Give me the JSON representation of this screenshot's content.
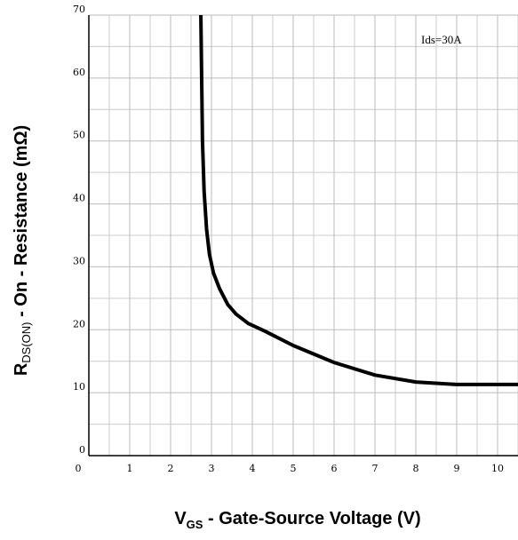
{
  "chart_data": {
    "type": "line",
    "x_label": {
      "main": "V",
      "sub": "GS",
      "rest": " - Gate-Source Voltage (V)"
    },
    "y_label": {
      "main": "R",
      "sub": "DS(ON)",
      "rest": " - On - Resistance (mΩ)"
    },
    "annotation": "Ids=30A",
    "x": [
      2.74,
      2.76,
      2.78,
      2.82,
      2.88,
      2.95,
      3.05,
      3.2,
      3.4,
      3.6,
      3.9,
      4.3,
      5,
      6,
      7,
      8,
      9,
      10,
      10.5
    ],
    "series": [
      {
        "name": "Ids=30A",
        "color": "#000000",
        "values": [
          70,
          60,
          50,
          42,
          36,
          32,
          29,
          26.5,
          24,
          22.5,
          21,
          19.8,
          17.5,
          14.8,
          12.8,
          11.7,
          11.3,
          11.3,
          11.3
        ]
      }
    ],
    "xlim": [
      0,
      10.5
    ],
    "xticks": [
      0,
      1,
      2,
      3,
      4,
      5,
      6,
      7,
      8,
      9,
      10
    ],
    "ylim": [
      0,
      70
    ],
    "yticks": [
      0,
      10,
      20,
      30,
      40,
      50,
      60,
      70
    ],
    "grid": true
  }
}
